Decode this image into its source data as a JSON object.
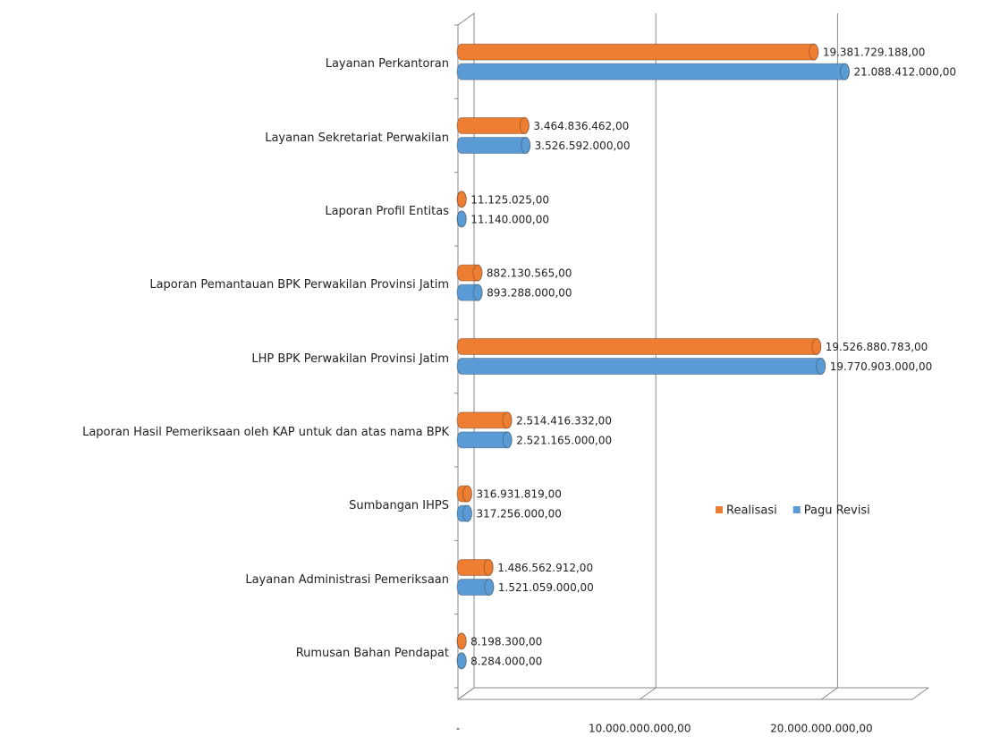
{
  "chart_data": {
    "type": "bar",
    "orientation": "horizontal",
    "categories": [
      "Layanan Perkantoran",
      "Layanan Sekretariat Perwakilan",
      "Laporan Profil Entitas",
      "Laporan Pemantauan BPK Perwakilan Provinsi Jatim",
      "LHP BPK Perwakilan Provinsi Jatim",
      "Laporan Hasil Pemeriksaan oleh KAP untuk dan atas nama BPK",
      "Sumbangan IHPS",
      "Layanan Administrasi Pemeriksaan",
      "Rumusan Bahan Pendapat"
    ],
    "series": [
      {
        "name": "Realisasi",
        "color": "#ed7d31",
        "values": [
          19381729188,
          3464836462,
          11125025,
          882130565,
          19526880783,
          2514416332,
          316931819,
          1486562912,
          8198300
        ],
        "value_labels": [
          "19.381.729.188,00",
          "3.464.836.462,00",
          "11.125.025,00",
          "882.130.565,00",
          "19.526.880.783,00",
          "2.514.416.332,00",
          "316.931.819,00",
          "1.486.562.912,00",
          "8.198.300,00"
        ]
      },
      {
        "name": "Pagu Revisi",
        "color": "#5b9bd5",
        "values": [
          21088412000,
          3526592000,
          11140000,
          893288000,
          19770903000,
          2521165000,
          317256000,
          1521059000,
          8284000
        ],
        "value_labels": [
          "21.088.412.000,00",
          "3.526.592.000,00",
          "11.140.000,00",
          "893.288.000,00",
          "19.770.903.000,00",
          "2.521.165.000,00",
          "317.256.000,00",
          "1.521.059.000,00",
          "8.284.000,00"
        ]
      }
    ],
    "xlim": [
      0,
      25000000000
    ],
    "xticks": [
      {
        "value": 0,
        "label": "-"
      },
      {
        "value": 10000000000,
        "label": "10.000.000.000,00"
      },
      {
        "value": 20000000000,
        "label": "20.000.000.000,00"
      }
    ],
    "grid": true,
    "legend": "right"
  }
}
